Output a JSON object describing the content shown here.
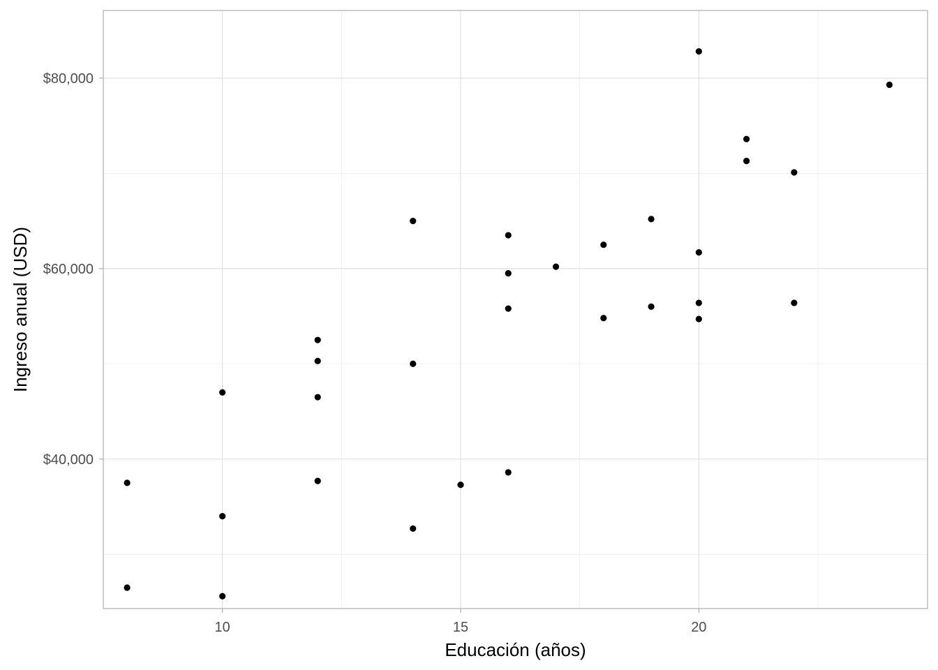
{
  "chart_data": {
    "type": "scatter",
    "xlabel": "Educación (años)",
    "ylabel": "Ingreso anual (USD)",
    "xlim": [
      7.5,
      24.8
    ],
    "ylim": [
      24300,
      87100
    ],
    "x_ticks": [
      10,
      15,
      20
    ],
    "x_tick_labels": [
      "10",
      "15",
      "20"
    ],
    "y_ticks": [
      40000,
      60000,
      80000
    ],
    "y_tick_labels": [
      "$40,000",
      "$60,000",
      "$80,000"
    ],
    "grid": true,
    "legend": "none",
    "point_color": "#000000",
    "points": [
      {
        "x": 8,
        "y": 37500
      },
      {
        "x": 8,
        "y": 26500
      },
      {
        "x": 10,
        "y": 47000
      },
      {
        "x": 10,
        "y": 34000
      },
      {
        "x": 10,
        "y": 25600
      },
      {
        "x": 12,
        "y": 52500
      },
      {
        "x": 12,
        "y": 50300
      },
      {
        "x": 12,
        "y": 46500
      },
      {
        "x": 12,
        "y": 37700
      },
      {
        "x": 14,
        "y": 65000
      },
      {
        "x": 14,
        "y": 50000
      },
      {
        "x": 14,
        "y": 32700
      },
      {
        "x": 15,
        "y": 37300
      },
      {
        "x": 16,
        "y": 63500
      },
      {
        "x": 16,
        "y": 59500
      },
      {
        "x": 16,
        "y": 55800
      },
      {
        "x": 16,
        "y": 38600
      },
      {
        "x": 17,
        "y": 60200
      },
      {
        "x": 18,
        "y": 62500
      },
      {
        "x": 18,
        "y": 54800
      },
      {
        "x": 19,
        "y": 65200
      },
      {
        "x": 19,
        "y": 56000
      },
      {
        "x": 20,
        "y": 82800
      },
      {
        "x": 20,
        "y": 61700
      },
      {
        "x": 20,
        "y": 56400
      },
      {
        "x": 20,
        "y": 54700
      },
      {
        "x": 21,
        "y": 73600
      },
      {
        "x": 21,
        "y": 71300
      },
      {
        "x": 22,
        "y": 70100
      },
      {
        "x": 22,
        "y": 56400
      },
      {
        "x": 24,
        "y": 79300
      }
    ]
  }
}
